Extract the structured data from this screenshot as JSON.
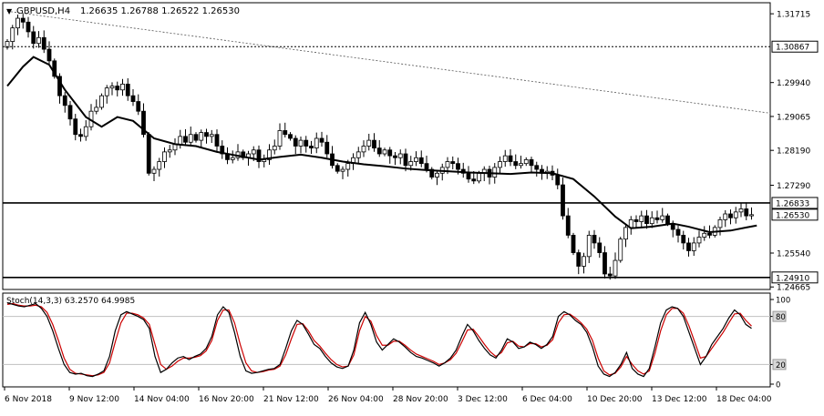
{
  "header": {
    "symbol_caption": "GBPUSD,H4",
    "ohlc": "1.26635 1.26788 1.26522 1.26530",
    "menu_glyph": "▼"
  },
  "price_scale": {
    "ticks": [
      "1.31715",
      "1.29940",
      "1.29065",
      "1.28190",
      "1.27290",
      "1.25540",
      "1.24665"
    ],
    "boxes": [
      {
        "label": "1.30867",
        "value": 1.30867,
        "style": "dotted",
        "color": "#000000"
      },
      {
        "label": "1.26833",
        "value": 1.26833,
        "style": "solid",
        "color": "#000000"
      },
      {
        "label": "1.26530",
        "value": 1.2653,
        "style": "solid",
        "color": "#000000"
      },
      {
        "label": "1.24910",
        "value": 1.2491,
        "style": "solid",
        "color": "#000000"
      }
    ]
  },
  "stoch": {
    "caption": "Stoch(14,3,3) 63.2570 64.9985",
    "ticks": [
      "100",
      "80",
      "20",
      "0"
    ],
    "main_color": "#000000",
    "signal_color": "#cc0000"
  },
  "time_axis": {
    "labels": [
      "6 Nov 2018",
      "9 Nov 12:00",
      "14 Nov 04:00",
      "16 Nov 20:00",
      "21 Nov 12:00",
      "26 Nov 04:00",
      "28 Nov 20:00",
      "3 Dec 12:00",
      "6 Dec 04:00",
      "10 Dec 20:00",
      "13 Dec 12:00",
      "18 Dec 04:00"
    ]
  },
  "colors": {
    "candle": "#000000",
    "ma": "#000000",
    "trendline": "#555555",
    "grid": "#c0c0c0"
  },
  "chart_data": {
    "type": "candlestick",
    "symbol": "GBPUSD",
    "timeframe": "H4",
    "ylim": [
      1.246,
      1.32
    ],
    "moving_average": [
      [
        0,
        1.2985
      ],
      [
        3,
        1.3035
      ],
      [
        5,
        1.306
      ],
      [
        8,
        1.304
      ],
      [
        11,
        1.2975
      ],
      [
        15,
        1.2905
      ],
      [
        18,
        1.288
      ],
      [
        21,
        1.2905
      ],
      [
        24,
        1.2895
      ],
      [
        28,
        1.285
      ],
      [
        32,
        1.2835
      ],
      [
        36,
        1.283
      ],
      [
        40,
        1.2815
      ],
      [
        44,
        1.2805
      ],
      [
        48,
        1.2795
      ],
      [
        52,
        1.2802
      ],
      [
        56,
        1.2808
      ],
      [
        60,
        1.28
      ],
      [
        64,
        1.279
      ],
      [
        68,
        1.2783
      ],
      [
        72,
        1.2778
      ],
      [
        76,
        1.2772
      ],
      [
        80,
        1.2768
      ],
      [
        84,
        1.2765
      ],
      [
        88,
        1.2762
      ],
      [
        92,
        1.276
      ],
      [
        96,
        1.2758
      ],
      [
        100,
        1.2762
      ],
      [
        104,
        1.276
      ],
      [
        108,
        1.2745
      ],
      [
        112,
        1.27
      ],
      [
        116,
        1.2648
      ],
      [
        119,
        1.2618
      ],
      [
        123,
        1.2622
      ],
      [
        127,
        1.263
      ],
      [
        130,
        1.2622
      ],
      [
        134,
        1.2608
      ],
      [
        138,
        1.2612
      ],
      [
        141,
        1.262
      ],
      [
        143,
        1.2625
      ]
    ],
    "trendline": {
      "start": [
        0,
        1.3178
      ],
      "end": [
        147,
        1.2915
      ]
    },
    "horizontal_levels": [
      1.30867,
      1.26833,
      1.2491
    ],
    "closes": [
      1.31,
      1.3135,
      1.316,
      1.315,
      1.3125,
      1.3095,
      1.311,
      1.308,
      1.305,
      1.301,
      1.296,
      1.2935,
      1.29,
      1.286,
      1.2855,
      1.288,
      1.292,
      1.293,
      1.296,
      1.298,
      1.2985,
      1.2975,
      1.299,
      1.296,
      1.2945,
      1.292,
      1.286,
      1.276,
      1.277,
      1.279,
      1.2815,
      1.282,
      1.2835,
      1.2855,
      1.284,
      1.286,
      1.2845,
      1.2865,
      1.2855,
      1.286,
      1.283,
      1.281,
      1.2795,
      1.28,
      1.2815,
      1.28,
      1.281,
      1.282,
      1.279,
      1.2795,
      1.282,
      1.283,
      1.287,
      1.286,
      1.285,
      1.283,
      1.2845,
      1.283,
      1.2825,
      1.285,
      1.284,
      1.281,
      1.278,
      1.2765,
      1.277,
      1.2785,
      1.28,
      1.2815,
      1.283,
      1.2845,
      1.2825,
      1.281,
      1.282,
      1.2805,
      1.28,
      1.281,
      1.278,
      1.279,
      1.28,
      1.2785,
      1.277,
      1.275,
      1.276,
      1.2775,
      1.279,
      1.2785,
      1.277,
      1.276,
      1.2745,
      1.274,
      1.276,
      1.277,
      1.275,
      1.2775,
      1.279,
      1.2805,
      1.279,
      1.278,
      1.2785,
      1.2795,
      1.278,
      1.277,
      1.276,
      1.2765,
      1.2755,
      1.273,
      1.265,
      1.26,
      1.2555,
      1.252,
      1.2545,
      1.26,
      1.258,
      1.2555,
      1.25,
      1.2495,
      1.2535,
      1.259,
      1.262,
      1.264,
      1.2635,
      1.265,
      1.263,
      1.2645,
      1.264,
      1.265,
      1.263,
      1.2615,
      1.26,
      1.258,
      1.256,
      1.258,
      1.2595,
      1.2605,
      1.26,
      1.262,
      1.264,
      1.2655,
      1.2645,
      1.266,
      1.2668,
      1.265,
      1.2653
    ],
    "stoch_main": [
      97,
      95,
      93,
      92,
      94,
      96,
      90,
      80,
      62,
      40,
      20,
      10,
      8,
      9,
      6,
      5,
      8,
      12,
      30,
      62,
      82,
      86,
      83,
      80,
      76,
      65,
      30,
      10,
      14,
      22,
      28,
      30,
      26,
      30,
      33,
      40,
      55,
      82,
      92,
      85,
      60,
      30,
      12,
      9,
      10,
      12,
      14,
      15,
      20,
      40,
      62,
      75,
      70,
      58,
      45,
      40,
      30,
      22,
      17,
      15,
      18,
      38,
      72,
      85,
      70,
      48,
      38,
      45,
      52,
      48,
      42,
      35,
      30,
      28,
      25,
      22,
      18,
      22,
      28,
      38,
      55,
      70,
      62,
      50,
      40,
      32,
      28,
      38,
      52,
      48,
      40,
      42,
      48,
      45,
      40,
      45,
      55,
      80,
      86,
      82,
      75,
      70,
      60,
      42,
      18,
      8,
      5,
      10,
      20,
      35,
      15,
      8,
      5,
      15,
      42,
      72,
      88,
      92,
      90,
      80,
      60,
      40,
      20,
      30,
      45,
      55,
      65,
      78,
      88,
      82,
      70,
      65
    ],
    "stoch_signal": [
      95,
      96,
      94,
      93,
      93,
      94,
      92,
      85,
      70,
      50,
      28,
      14,
      9,
      8,
      7,
      6,
      7,
      10,
      22,
      48,
      72,
      84,
      84,
      82,
      78,
      70,
      45,
      20,
      14,
      18,
      24,
      28,
      28,
      29,
      31,
      37,
      50,
      75,
      88,
      88,
      72,
      45,
      22,
      12,
      10,
      11,
      13,
      14,
      18,
      32,
      52,
      70,
      71,
      62,
      50,
      43,
      34,
      26,
      20,
      17,
      18,
      32,
      62,
      80,
      74,
      56,
      44,
      44,
      49,
      49,
      44,
      38,
      33,
      30,
      27,
      24,
      20,
      22,
      26,
      34,
      48,
      63,
      64,
      55,
      45,
      36,
      30,
      35,
      47,
      49,
      43,
      42,
      46,
      46,
      42,
      44,
      51,
      72,
      82,
      83,
      78,
      72,
      64,
      50,
      28,
      12,
      7,
      9,
      17,
      30,
      20,
      12,
      8,
      12,
      34,
      62,
      82,
      90,
      90,
      84,
      68,
      48,
      28,
      30,
      40,
      50,
      60,
      72,
      83,
      84,
      75,
      68
    ]
  }
}
